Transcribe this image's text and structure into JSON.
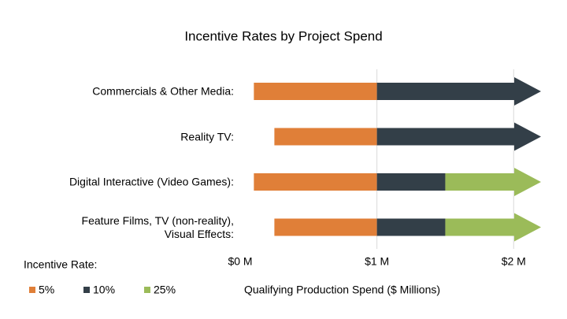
{
  "chart_data": {
    "type": "floating-bar",
    "title": "Incentive Rates by Project Spend",
    "x_label": "Qualifying Production Spend ($ Millions)",
    "legend_title": "Incentive Rate:",
    "categories": [
      "Commercials & Other Media:",
      "Reality TV:",
      "Digital Interactive (Video Games):",
      "Feature Films, TV (non-reality),\nVisual Effects:"
    ],
    "starts": [
      0.1,
      0.25,
      0.1,
      0.25
    ],
    "series": [
      {
        "name": "5%",
        "color": "#e07f38",
        "values": [
          0.9,
          0.75,
          0.9,
          0.75
        ]
      },
      {
        "name": "10%",
        "color": "#333f48",
        "values": [
          1.2,
          1.2,
          0.5,
          0.5
        ]
      },
      {
        "name": "25%",
        "color": "#9bbb59",
        "values": [
          null,
          null,
          0.7,
          0.7
        ]
      }
    ],
    "xlim": [
      0,
      2.2
    ],
    "xticks": [
      {
        "value": 0,
        "label": "$0 M"
      },
      {
        "value": 1,
        "label": "$1 M"
      },
      {
        "value": 2,
        "label": "$2 M"
      }
    ],
    "grid": true
  }
}
